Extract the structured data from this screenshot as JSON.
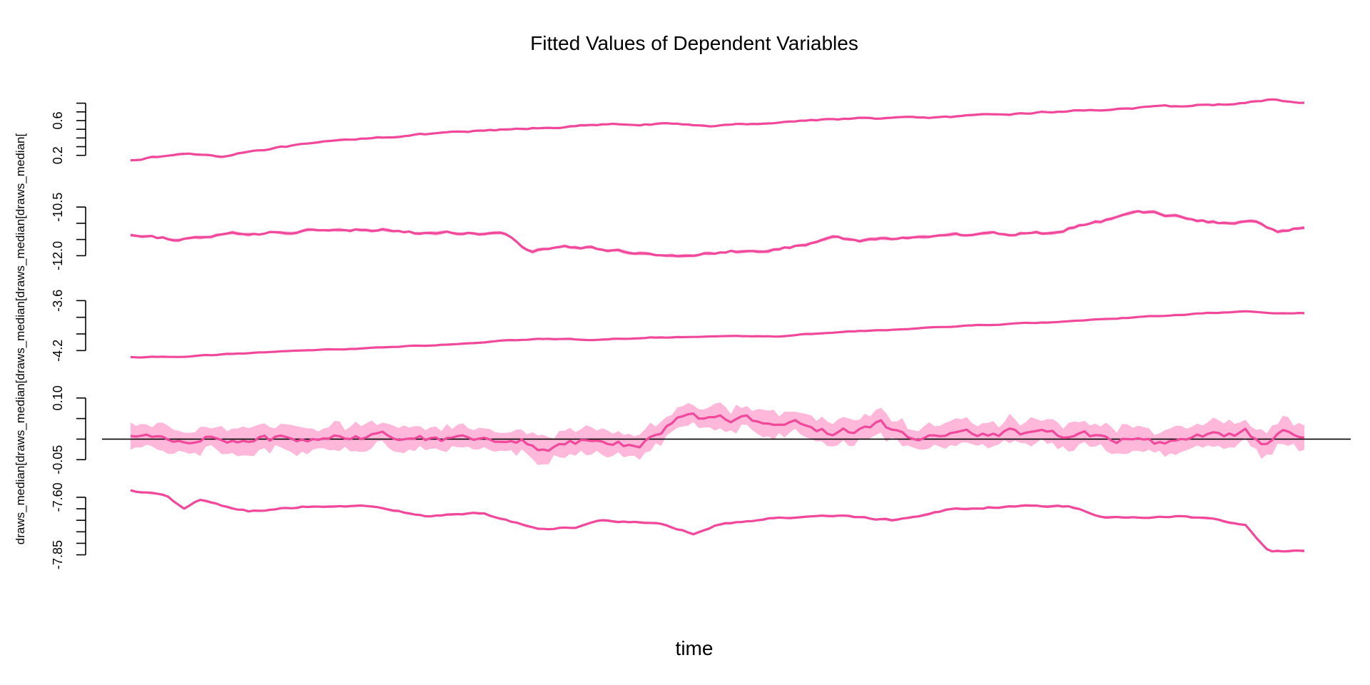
{
  "chart_data": {
    "type": "line",
    "title": "Fitted Values of Dependent Variables",
    "xlabel": "time",
    "ylabel": "draws_median[draws_median[draws_median[draws_median[draws_median[",
    "colors": {
      "line": "#f0489a",
      "band": "#ff9fce",
      "axis": "#000000"
    },
    "n_points": 220,
    "panels": [
      {
        "ylim": [
          0.05,
          0.92
        ],
        "ticks": [
          0.2,
          0.3,
          0.4,
          0.5,
          0.6,
          0.7,
          0.8
        ],
        "tick_labels": [
          "0.2",
          "",
          "",
          "",
          "0.6",
          "",
          ""
        ],
        "band_width": 0.012,
        "knots": [
          [
            0,
            0.15
          ],
          [
            0.05,
            0.22
          ],
          [
            0.08,
            0.19
          ],
          [
            0.1,
            0.25
          ],
          [
            0.2,
            0.4
          ],
          [
            0.3,
            0.48
          ],
          [
            0.4,
            0.55
          ],
          [
            0.45,
            0.56
          ],
          [
            0.5,
            0.54
          ],
          [
            0.6,
            0.62
          ],
          [
            0.7,
            0.64
          ],
          [
            0.8,
            0.71
          ],
          [
            0.9,
            0.77
          ],
          [
            0.95,
            0.8
          ],
          [
            0.97,
            0.84
          ],
          [
            1,
            0.8
          ]
        ],
        "noise": 0.008
      },
      {
        "ylim": [
          -12.3,
          -10.1
        ],
        "ticks": [
          -12.0,
          -11.5,
          -11.0,
          -10.5
        ],
        "tick_labels": [
          "-12.0",
          "",
          "",
          "-10.5"
        ],
        "band_width": 0.05,
        "knots": [
          [
            0,
            -11.4
          ],
          [
            0.04,
            -11.5
          ],
          [
            0.08,
            -11.35
          ],
          [
            0.12,
            -11.3
          ],
          [
            0.18,
            -11.15
          ],
          [
            0.22,
            -11.2
          ],
          [
            0.26,
            -11.35
          ],
          [
            0.28,
            -11.3
          ],
          [
            0.32,
            -11.35
          ],
          [
            0.34,
            -11.9
          ],
          [
            0.37,
            -11.7
          ],
          [
            0.43,
            -11.9
          ],
          [
            0.48,
            -12.0
          ],
          [
            0.52,
            -11.85
          ],
          [
            0.54,
            -11.9
          ],
          [
            0.58,
            -11.6
          ],
          [
            0.6,
            -11.45
          ],
          [
            0.62,
            -11.55
          ],
          [
            0.68,
            -11.4
          ],
          [
            0.72,
            -11.35
          ],
          [
            0.78,
            -11.3
          ],
          [
            0.82,
            -11.0
          ],
          [
            0.85,
            -10.75
          ],
          [
            0.87,
            -10.65
          ],
          [
            0.9,
            -10.85
          ],
          [
            0.93,
            -11.0
          ],
          [
            0.96,
            -10.95
          ],
          [
            0.975,
            -11.25
          ],
          [
            1,
            -11.15
          ]
        ],
        "noise": 0.04
      },
      {
        "ylim": [
          -4.3,
          -3.52
        ],
        "ticks": [
          -4.2,
          -4.0,
          -3.8,
          -3.6
        ],
        "tick_labels": [
          "-4.2",
          "",
          "",
          "-3.6"
        ],
        "band_width": 0.006,
        "knots": [
          [
            0,
            -4.28
          ],
          [
            0.05,
            -4.27
          ],
          [
            0.1,
            -4.23
          ],
          [
            0.2,
            -4.17
          ],
          [
            0.3,
            -4.11
          ],
          [
            0.32,
            -4.08
          ],
          [
            0.35,
            -4.06
          ],
          [
            0.4,
            -4.07
          ],
          [
            0.45,
            -4.04
          ],
          [
            0.5,
            -4.03
          ],
          [
            0.55,
            -4.03
          ],
          [
            0.6,
            -3.98
          ],
          [
            0.65,
            -3.95
          ],
          [
            0.7,
            -3.91
          ],
          [
            0.8,
            -3.85
          ],
          [
            0.88,
            -3.78
          ],
          [
            0.92,
            -3.75
          ],
          [
            0.95,
            -3.73
          ],
          [
            0.97,
            -3.75
          ],
          [
            1,
            -3.75
          ]
        ],
        "noise": 0.004
      },
      {
        "ylim": [
          -0.06,
          0.11
        ],
        "ticks": [
          -0.05,
          0.0,
          0.05,
          0.1
        ],
        "tick_labels": [
          "-0.05",
          "",
          "",
          "0.10"
        ],
        "band_width": 0.028,
        "zero_line": 0,
        "knots": [
          [
            0,
            0.005
          ],
          [
            0.04,
            -0.005
          ],
          [
            0.07,
            0.01
          ],
          [
            0.1,
            -0.005
          ],
          [
            0.15,
            0.005
          ],
          [
            0.2,
            0.01
          ],
          [
            0.25,
            0.005
          ],
          [
            0.3,
            0.005
          ],
          [
            0.33,
            0.0
          ],
          [
            0.35,
            -0.02
          ],
          [
            0.38,
            -0.01
          ],
          [
            0.4,
            -0.005
          ],
          [
            0.42,
            -0.015
          ],
          [
            0.44,
            -0.005
          ],
          [
            0.45,
            0.01
          ],
          [
            0.47,
            0.06
          ],
          [
            0.5,
            0.05
          ],
          [
            0.55,
            0.045
          ],
          [
            0.58,
            0.03
          ],
          [
            0.6,
            0.015
          ],
          [
            0.62,
            0.025
          ],
          [
            0.64,
            0.04
          ],
          [
            0.66,
            0.0
          ],
          [
            0.7,
            0.005
          ],
          [
            0.75,
            0.02
          ],
          [
            0.8,
            0.01
          ],
          [
            0.85,
            0.0
          ],
          [
            0.88,
            -0.01
          ],
          [
            0.9,
            -0.005
          ],
          [
            0.93,
            0.01
          ],
          [
            0.95,
            0.02
          ],
          [
            0.96,
            -0.005
          ],
          [
            0.97,
            -0.02
          ],
          [
            0.98,
            0.01
          ],
          [
            1,
            0.0
          ]
        ],
        "noise": 0.009
      },
      {
        "ylim": [
          -7.87,
          -7.56
        ],
        "ticks": [
          -7.85,
          -7.8,
          -7.75,
          -7.7,
          -7.65,
          -7.6
        ],
        "tick_labels": [
          "-7.85",
          "",
          "",
          "",
          "",
          "-7.60"
        ],
        "band_width": 0.005,
        "knots": [
          [
            0,
            -7.57
          ],
          [
            0.03,
            -7.59
          ],
          [
            0.045,
            -7.65
          ],
          [
            0.06,
            -7.61
          ],
          [
            0.08,
            -7.64
          ],
          [
            0.1,
            -7.66
          ],
          [
            0.15,
            -7.64
          ],
          [
            0.2,
            -7.64
          ],
          [
            0.25,
            -7.68
          ],
          [
            0.3,
            -7.67
          ],
          [
            0.35,
            -7.74
          ],
          [
            0.38,
            -7.73
          ],
          [
            0.4,
            -7.7
          ],
          [
            0.45,
            -7.71
          ],
          [
            0.48,
            -7.76
          ],
          [
            0.5,
            -7.72
          ],
          [
            0.55,
            -7.69
          ],
          [
            0.6,
            -7.68
          ],
          [
            0.65,
            -7.7
          ],
          [
            0.7,
            -7.65
          ],
          [
            0.75,
            -7.64
          ],
          [
            0.8,
            -7.64
          ],
          [
            0.83,
            -7.69
          ],
          [
            0.86,
            -7.69
          ],
          [
            0.9,
            -7.68
          ],
          [
            0.95,
            -7.72
          ],
          [
            0.97,
            -7.84
          ],
          [
            1,
            -7.83
          ]
        ],
        "noise": 0.003
      }
    ]
  }
}
